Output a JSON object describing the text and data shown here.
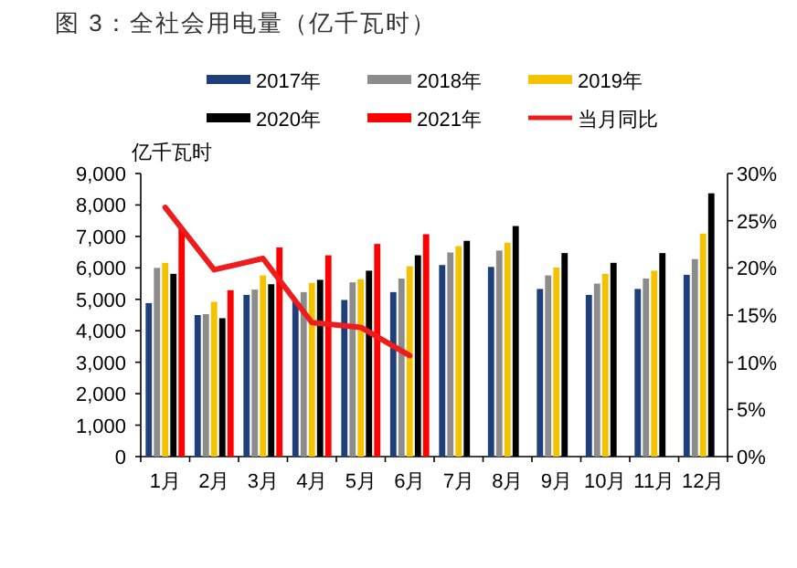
{
  "chart_data": {
    "type": "bar",
    "title": "图 3：全社会用电量（亿千瓦时）",
    "ylabel": "亿千瓦时",
    "categories": [
      "1月",
      "2月",
      "3月",
      "4月",
      "5月",
      "6月",
      "7月",
      "8月",
      "9月",
      "10月",
      "11月",
      "12月"
    ],
    "series": [
      {
        "name": "2017年",
        "color": "#1f3f7a",
        "values": [
          4880,
          4500,
          5140,
          4940,
          4980,
          5230,
          6090,
          6030,
          5330,
          5140,
          5330,
          5780
        ]
      },
      {
        "name": "2018年",
        "color": "#8c8c8c",
        "values": [
          6000,
          4530,
          5310,
          5230,
          5540,
          5660,
          6490,
          6550,
          5760,
          5500,
          5660,
          6280
        ]
      },
      {
        "name": "2019年",
        "color": "#f5c200",
        "values": [
          6160,
          4920,
          5760,
          5520,
          5640,
          6050,
          6690,
          6800,
          6010,
          5810,
          5910,
          7090
        ]
      },
      {
        "name": "2020年",
        "color": "#000000",
        "values": [
          5810,
          4400,
          5480,
          5620,
          5910,
          6400,
          6860,
          7330,
          6470,
          6160,
          6470,
          8370
        ]
      },
      {
        "name": "2021年",
        "color": "#ff0000",
        "values": [
          7250,
          5290,
          6650,
          6400,
          6760,
          7070,
          null,
          null,
          null,
          null,
          null,
          null
        ]
      },
      {
        "name": "当月同比",
        "color": "#ee1c1c",
        "type": "line",
        "axis": "y2",
        "values": [
          26.4,
          19.8,
          21.0,
          14.2,
          13.7,
          10.7,
          null,
          null,
          null,
          null,
          null,
          null
        ]
      }
    ],
    "ylim": [
      0,
      9000
    ],
    "yticks": [
      {
        "value": 0,
        "label": "0"
      },
      {
        "value": 1000,
        "label": "1,000"
      },
      {
        "value": 2000,
        "label": "2,000"
      },
      {
        "value": 3000,
        "label": "3,000"
      },
      {
        "value": 4000,
        "label": "4,000"
      },
      {
        "value": 5000,
        "label": "5,000"
      },
      {
        "value": 6000,
        "label": "6,000"
      },
      {
        "value": 7000,
        "label": "7,000"
      },
      {
        "value": 8000,
        "label": "8,000"
      },
      {
        "value": 9000,
        "label": "9,000"
      }
    ],
    "y2lim": [
      0,
      30
    ],
    "y2ticks": [
      {
        "value": 0,
        "label": "0%"
      },
      {
        "value": 5,
        "label": "5%"
      },
      {
        "value": 10,
        "label": "10%"
      },
      {
        "value": 15,
        "label": "15%"
      },
      {
        "value": 20,
        "label": "20%"
      },
      {
        "value": 25,
        "label": "25%"
      },
      {
        "value": 30,
        "label": "30%"
      }
    ],
    "legend": "top",
    "marker": "none",
    "line_style": "solid",
    "grid": false
  }
}
